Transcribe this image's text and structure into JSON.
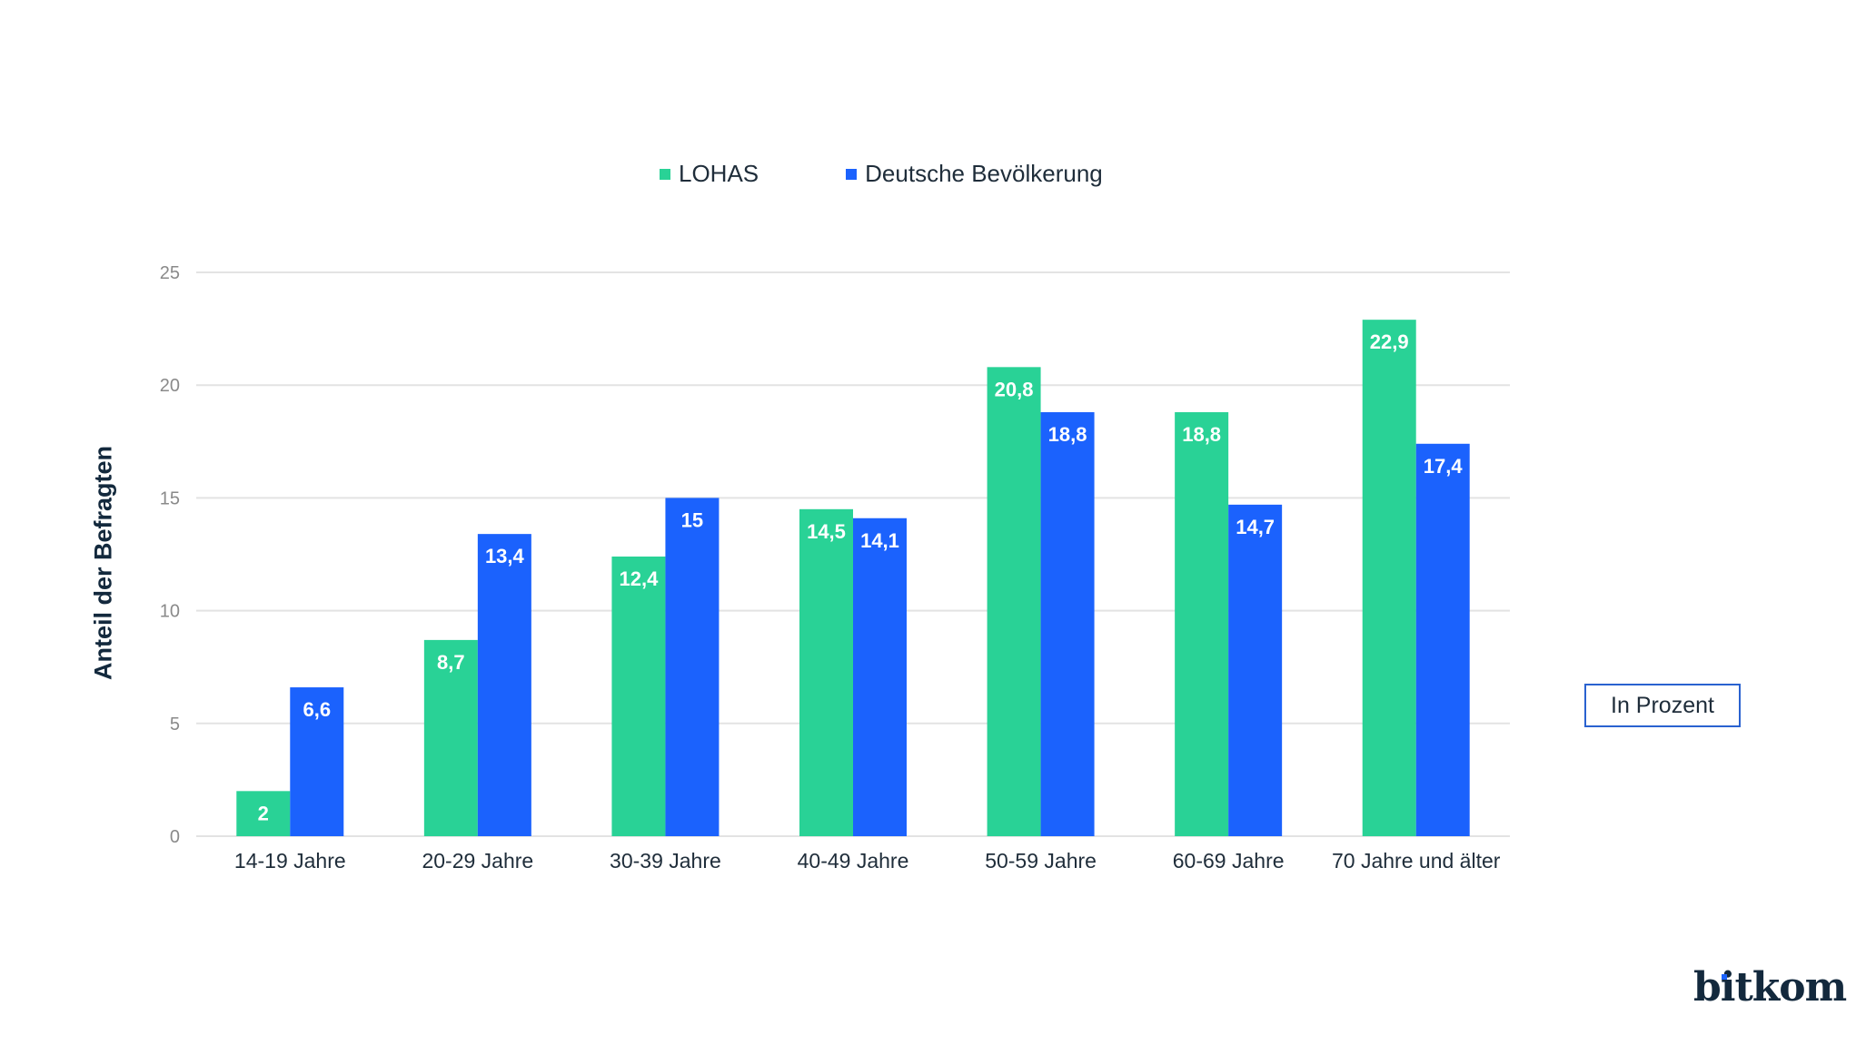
{
  "chart_data": {
    "type": "bar",
    "title": "",
    "xlabel": "",
    "ylabel": "Anteil der Befragten",
    "ylim": [
      0,
      25
    ],
    "yticks": [
      0,
      5,
      10,
      15,
      20,
      25
    ],
    "grid": true,
    "legend_position": "top-center",
    "categories": [
      "14-19 Jahre",
      "20-29 Jahre",
      "30-39 Jahre",
      "40-49 Jahre",
      "50-59 Jahre",
      "60-69 Jahre",
      "70 Jahre und älter"
    ],
    "series": [
      {
        "name": "LOHAS",
        "color": "#29d296",
        "values": [
          2,
          8.7,
          12.4,
          14.5,
          20.8,
          18.8,
          22.9
        ],
        "labels": [
          "2",
          "8,7",
          "12,4",
          "14,5",
          "20,8",
          "18,8",
          "22,9"
        ]
      },
      {
        "name": "Deutsche Bevölkerung",
        "color": "#1b62fd",
        "values": [
          6.6,
          13.4,
          15,
          14.1,
          18.8,
          14.7,
          17.4
        ],
        "labels": [
          "6,6",
          "13,4",
          "15",
          "14,1",
          "18,8",
          "14,7",
          "17,4"
        ]
      }
    ],
    "annotation": "In Prozent"
  },
  "legend": {
    "items": [
      {
        "label": "LOHAS",
        "color": "#29d296"
      },
      {
        "label": "Deutsche Bevölkerung",
        "color": "#1b62fd"
      }
    ]
  },
  "unit_box": {
    "label": "In Prozent",
    "border_color": "#2a62d0"
  },
  "logo": {
    "text": "bitkom",
    "accent_color": "#1b62fd"
  }
}
